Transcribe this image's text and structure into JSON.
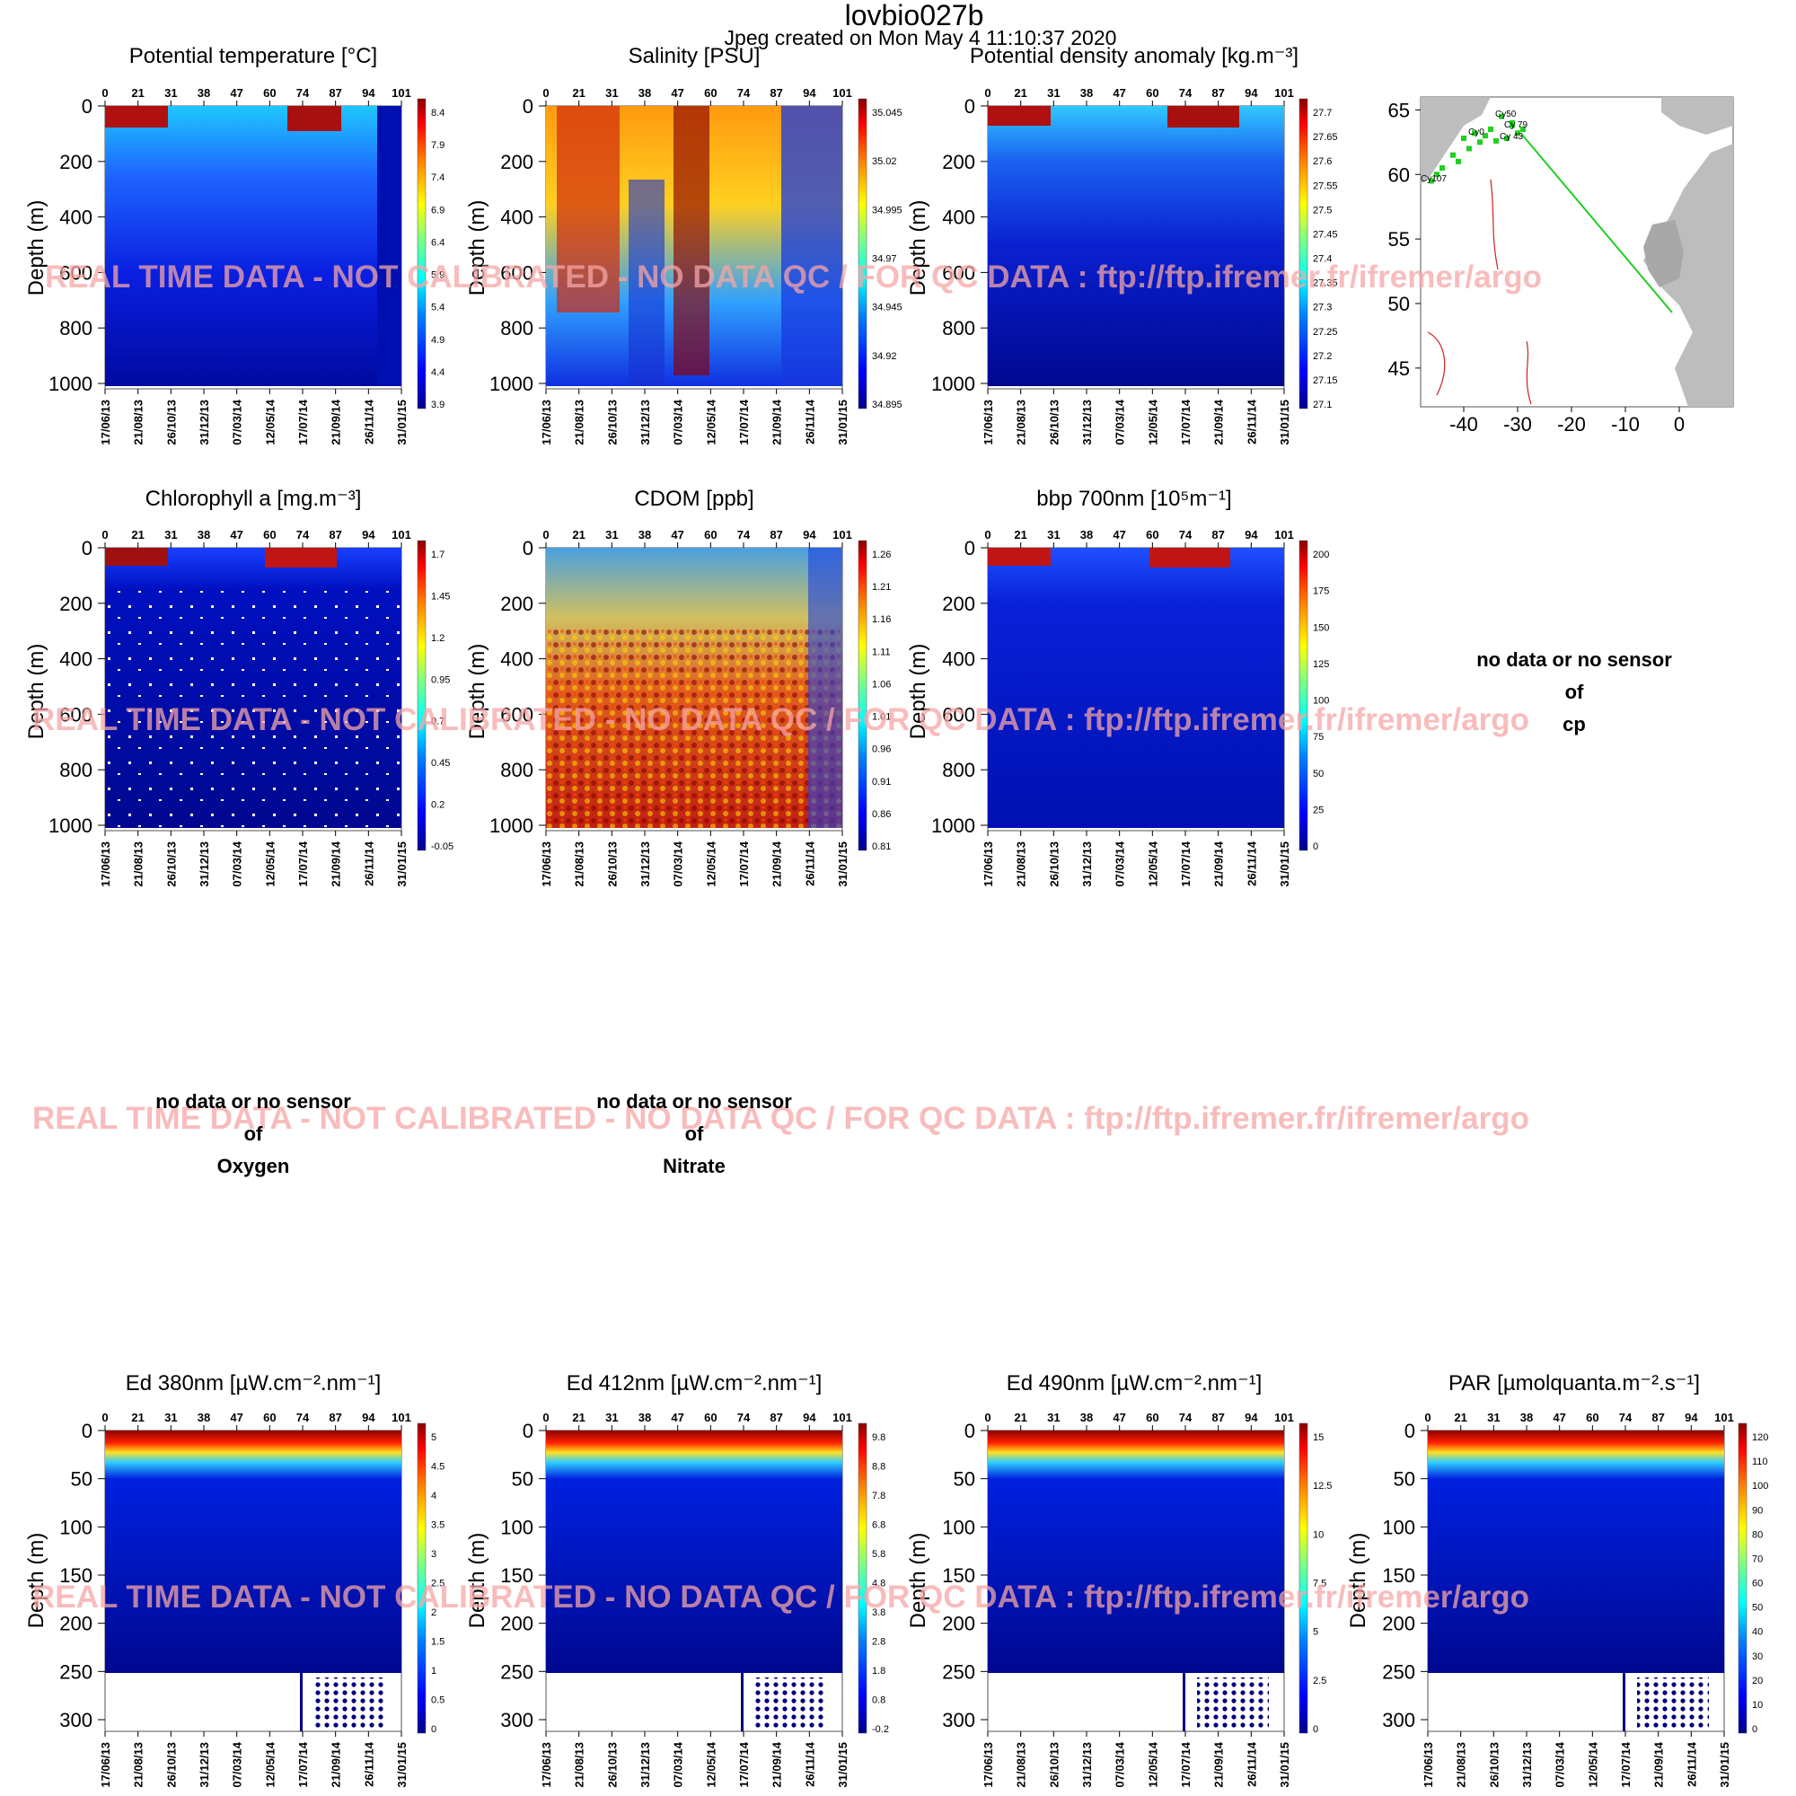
{
  "header": {
    "title": "lovbio027b",
    "subtitle": "Jpeg created on  Mon May  4 11:10:37 2020"
  },
  "watermark": "REAL TIME DATA - NOT CALIBRATED - NO DATA QC   /  FOR QC DATA : ftp://ftp.ifremer.fr/ifremer/argo",
  "axes": {
    "ylabel": "Depth (m)",
    "cycles": [
      "0",
      "21",
      "31",
      "38",
      "47",
      "60",
      "74",
      "87",
      "94",
      "101"
    ],
    "dates": [
      "17/06/13",
      "21/08/13",
      "26/10/13",
      "31/12/13",
      "07/03/14",
      "12/05/14",
      "17/07/14",
      "21/09/14",
      "26/11/14",
      "31/01/15"
    ]
  },
  "colors": {
    "jet": [
      "#00008b",
      "#0000ff",
      "#0080ff",
      "#00ffff",
      "#80ff80",
      "#ffff00",
      "#ff8000",
      "#ff0000",
      "#8b0000"
    ]
  },
  "chart_data": [
    {
      "type": "heatmap",
      "title": "Potential temperature [°C]",
      "ylim": [
        1000,
        0
      ],
      "yticks": [
        "0",
        "200",
        "400",
        "600",
        "800",
        "1000"
      ],
      "colorbar": [
        "8.4",
        "7.9",
        "7.4",
        "6.9",
        "6.4",
        "5.9",
        "5.4",
        "4.9",
        "4.4",
        "3.9"
      ],
      "x": "time/cycle",
      "y": "depth",
      "z_range": [
        3.9,
        8.4
      ]
    },
    {
      "type": "heatmap",
      "title": "Salinity [PSU]",
      "ylim": [
        1000,
        0
      ],
      "yticks": [
        "0",
        "200",
        "400",
        "600",
        "800",
        "1000"
      ],
      "colorbar": [
        "35.045",
        "35.02",
        "34.995",
        "34.97",
        "34.945",
        "34.92",
        "34.895"
      ],
      "x": "time/cycle",
      "y": "depth",
      "z_range": [
        34.895,
        35.045
      ]
    },
    {
      "type": "heatmap",
      "title": "Potential density anomaly [kg.m⁻³]",
      "ylim": [
        1000,
        0
      ],
      "yticks": [
        "0",
        "200",
        "400",
        "600",
        "800",
        "1000"
      ],
      "colorbar": [
        "27.7",
        "27.65",
        "27.6",
        "27.55",
        "27.5",
        "27.45",
        "27.4",
        "27.35",
        "27.3",
        "27.25",
        "27.2",
        "27.15",
        "27.1"
      ],
      "x": "time/cycle",
      "y": "depth",
      "z_range": [
        27.1,
        27.7
      ]
    },
    {
      "type": "heatmap",
      "title": "Chlorophyll a [mg.m⁻³]",
      "ylim": [
        1000,
        0
      ],
      "yticks": [
        "0",
        "200",
        "400",
        "600",
        "800",
        "1000"
      ],
      "colorbar": [
        "1.7",
        "1.45",
        "1.2",
        "0.95",
        "0.7",
        "0.45",
        "0.2",
        "-0.05"
      ],
      "x": "time/cycle",
      "y": "depth",
      "z_range": [
        -0.05,
        1.7
      ]
    },
    {
      "type": "heatmap",
      "title": "CDOM  [ppb]",
      "ylim": [
        1000,
        0
      ],
      "yticks": [
        "0",
        "200",
        "400",
        "600",
        "800",
        "1000"
      ],
      "colorbar": [
        "1.26",
        "1.21",
        "1.16",
        "1.11",
        "1.06",
        "1.01",
        "0.96",
        "0.91",
        "0.86",
        "0.81"
      ],
      "x": "time/cycle",
      "y": "depth",
      "z_range": [
        0.81,
        1.26
      ]
    },
    {
      "type": "heatmap",
      "title": "bbp 700nm [10⁵m⁻¹]",
      "ylim": [
        1000,
        0
      ],
      "yticks": [
        "0",
        "200",
        "400",
        "600",
        "800",
        "1000"
      ],
      "colorbar": [
        "200",
        "175",
        "150",
        "125",
        "100",
        "75",
        "50",
        "25",
        "0"
      ],
      "x": "time/cycle",
      "y": "depth",
      "z_range": [
        0,
        200
      ]
    },
    {
      "type": "heatmap",
      "title": "Ed 380nm [µW.cm⁻².nm⁻¹]",
      "ylim": [
        300,
        0
      ],
      "yticks": [
        "0",
        "50",
        "100",
        "150",
        "200",
        "250",
        "300"
      ],
      "colorbar": [
        "5",
        "4.5",
        "4",
        "3.5",
        "3",
        "2.5",
        "2",
        "1.5",
        "1",
        "0.5",
        "0"
      ],
      "x": "time/cycle",
      "y": "depth",
      "z_range": [
        0,
        5
      ]
    },
    {
      "type": "heatmap",
      "title": "Ed 412nm [µW.cm⁻².nm⁻¹]",
      "ylim": [
        300,
        0
      ],
      "yticks": [
        "0",
        "50",
        "100",
        "150",
        "200",
        "250",
        "300"
      ],
      "colorbar": [
        "9.8",
        "8.8",
        "7.8",
        "6.8",
        "5.8",
        "4.8",
        "3.8",
        "2.8",
        "1.8",
        "0.8",
        "-0.2"
      ],
      "x": "time/cycle",
      "y": "depth",
      "z_range": [
        -0.2,
        9.8
      ]
    },
    {
      "type": "heatmap",
      "title": "Ed 490nm [µW.cm⁻².nm⁻¹]",
      "ylim": [
        300,
        0
      ],
      "yticks": [
        "0",
        "50",
        "100",
        "150",
        "200",
        "250",
        "300"
      ],
      "colorbar": [
        "15",
        "12.5",
        "10",
        "7.5",
        "5",
        "2.5",
        "0"
      ],
      "x": "time/cycle",
      "y": "depth",
      "z_range": [
        0,
        15
      ]
    },
    {
      "type": "heatmap",
      "title": "PAR [µmolquanta.m⁻².s⁻¹]",
      "ylim": [
        300,
        0
      ],
      "yticks": [
        "0",
        "50",
        "100",
        "150",
        "200",
        "250",
        "300"
      ],
      "colorbar": [
        "120",
        "110",
        "100",
        "90",
        "80",
        "70",
        "60",
        "50",
        "40",
        "30",
        "20",
        "10",
        "0"
      ],
      "x": "time/cycle",
      "y": "depth",
      "z_range": [
        0,
        120
      ]
    },
    {
      "type": "scatter",
      "title": "",
      "xticks": [
        "-40",
        "-30",
        "-20",
        "-10",
        "0"
      ],
      "yticks": [
        "65",
        "60",
        "55",
        "50",
        "45"
      ],
      "xlim": [
        -48,
        10
      ],
      "ylim": [
        42,
        66
      ],
      "points": [
        [
          -35,
          63.5
        ],
        [
          -33,
          64.5
        ],
        [
          -31,
          63.8
        ],
        [
          -30,
          63.2
        ],
        [
          -32,
          62.8
        ],
        [
          -34,
          62.6
        ],
        [
          -36,
          63
        ],
        [
          -38,
          63.2
        ],
        [
          -40,
          62.8
        ],
        [
          -42,
          61.5
        ],
        [
          -44,
          60.5
        ],
        [
          -45,
          60
        ],
        [
          -46,
          59.5
        ],
        [
          -41,
          61
        ],
        [
          -39,
          62
        ],
        [
          -37,
          62.5
        ],
        [
          -29,
          63.5
        ],
        [
          -31,
          64
        ]
      ],
      "track_end": [
        -2.5,
        49.5
      ],
      "labels": [
        "Cy50",
        "Cy 79",
        "Cy0",
        "Cy 43",
        "Cy107"
      ]
    }
  ],
  "no_data": [
    {
      "line1": "no data or no sensor",
      "line2": "of",
      "line3": "cp"
    },
    {
      "line1": "no data or no sensor",
      "line2": "of",
      "line3": "Oxygen"
    },
    {
      "line1": "no data or no sensor",
      "line2": "of",
      "line3": "Nitrate"
    }
  ]
}
